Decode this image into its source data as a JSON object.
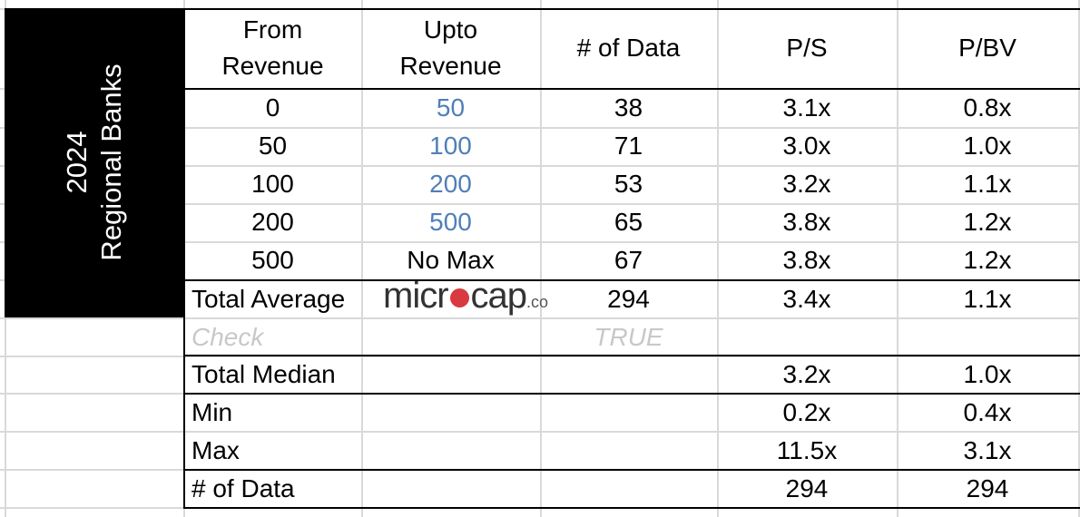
{
  "side_label": {
    "line1": "2024",
    "line2": "Regional Banks"
  },
  "headers": [
    {
      "line1": "From",
      "line2": "Revenue"
    },
    {
      "line1": "Upto",
      "line2": "Revenue"
    },
    {
      "line1": "# of Data",
      "line2": ""
    },
    {
      "line1": "P/S",
      "line2": ""
    },
    {
      "line1": "P/BV",
      "line2": ""
    }
  ],
  "rows": [
    {
      "from": "0",
      "upto": "50",
      "count": "38",
      "ps": "3.1x",
      "pbv": "0.8x"
    },
    {
      "from": "50",
      "upto": "100",
      "count": "71",
      "ps": "3.0x",
      "pbv": "1.0x"
    },
    {
      "from": "100",
      "upto": "200",
      "count": "53",
      "ps": "3.2x",
      "pbv": "1.1x"
    },
    {
      "from": "200",
      "upto": "500",
      "count": "65",
      "ps": "3.8x",
      "pbv": "1.2x"
    },
    {
      "from": "500",
      "upto": "No Max",
      "count": "67",
      "ps": "3.8x",
      "pbv": "1.2x"
    }
  ],
  "summary": [
    {
      "label": "Total Average",
      "count": "294",
      "ps": "3.4x",
      "pbv": "1.1x"
    },
    {
      "label": "Check",
      "count": "TRUE",
      "ps": "",
      "pbv": ""
    },
    {
      "label": "Total Median",
      "count": "",
      "ps": "3.2x",
      "pbv": "1.0x"
    },
    {
      "label": "Min",
      "count": "",
      "ps": "0.2x",
      "pbv": "0.4x"
    },
    {
      "label": "Max",
      "count": "",
      "ps": "11.5x",
      "pbv": "3.1x"
    },
    {
      "label": "# of Data",
      "count": "",
      "ps": "294",
      "pbv": "294"
    }
  ],
  "logo": {
    "part1": "micr",
    "part2": "cap",
    "suffix": ".co"
  },
  "colors": {
    "link_blue": "#4f7fb8",
    "logo_red": "#d83a3f",
    "check_gray": "#c8c8c8"
  }
}
